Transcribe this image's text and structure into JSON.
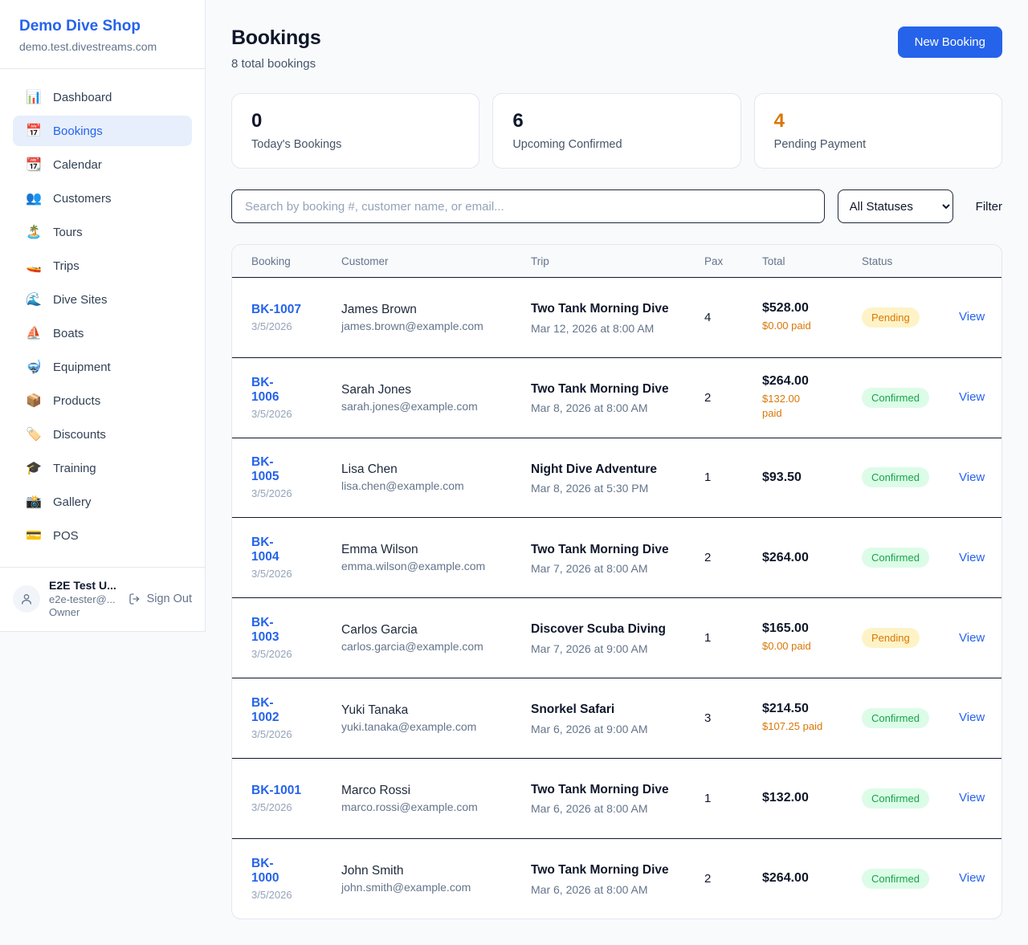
{
  "sidebar": {
    "shop_name": "Demo Dive Shop",
    "shop_domain": "demo.test.divestreams.com",
    "nav": [
      {
        "icon": "📊",
        "label": "Dashboard",
        "active": false
      },
      {
        "icon": "📅",
        "label": "Bookings",
        "active": true
      },
      {
        "icon": "📆",
        "label": "Calendar",
        "active": false
      },
      {
        "icon": "👥",
        "label": "Customers",
        "active": false
      },
      {
        "icon": "🏝️",
        "label": "Tours",
        "active": false
      },
      {
        "icon": "🚤",
        "label": "Trips",
        "active": false
      },
      {
        "icon": "🌊",
        "label": "Dive Sites",
        "active": false
      },
      {
        "icon": "⛵",
        "label": "Boats",
        "active": false
      },
      {
        "icon": "🤿",
        "label": "Equipment",
        "active": false
      },
      {
        "icon": "📦",
        "label": "Products",
        "active": false
      },
      {
        "icon": "🏷️",
        "label": "Discounts",
        "active": false
      },
      {
        "icon": "🎓",
        "label": "Training",
        "active": false
      },
      {
        "icon": "📸",
        "label": "Gallery",
        "active": false
      },
      {
        "icon": "💳",
        "label": "POS",
        "active": false
      }
    ],
    "user": {
      "name": "E2E Test U...",
      "email": "e2e-tester@...",
      "role": "Owner",
      "sign_out_label": "Sign Out"
    }
  },
  "header": {
    "title": "Bookings",
    "subtitle": "8 total bookings",
    "new_booking_label": "New Booking"
  },
  "stats": [
    {
      "value": "0",
      "label": "Today's Bookings",
      "accent": false
    },
    {
      "value": "6",
      "label": "Upcoming Confirmed",
      "accent": false
    },
    {
      "value": "4",
      "label": "Pending Payment",
      "accent": true
    }
  ],
  "controls": {
    "search_placeholder": "Search by booking #, customer name, or email...",
    "status_filter_value": "All Statuses",
    "filter_label": "Filter"
  },
  "table": {
    "columns": [
      "Booking",
      "Customer",
      "Trip",
      "Pax",
      "Total",
      "Status",
      ""
    ],
    "rows": [
      {
        "number_lines": [
          "BK-1007"
        ],
        "number": "BK-1007",
        "date": "3/5/2026",
        "customer_name": "James Brown",
        "customer_email": "james.brown@example.com",
        "trip_name": "Two Tank Morning Dive",
        "trip_datetime": "Mar 12, 2026 at 8:00 AM",
        "pax": "4",
        "total": "$528.00",
        "paid_lines": [
          "$0.00 paid"
        ],
        "status": "Pending",
        "action_label": "View"
      },
      {
        "number_lines": [
          "BK-",
          "1006"
        ],
        "number": "BK-1006",
        "date": "3/5/2026",
        "customer_name": "Sarah Jones",
        "customer_email": "sarah.jones@example.com",
        "trip_name": "Two Tank Morning Dive",
        "trip_datetime": "Mar 8, 2026 at 8:00 AM",
        "pax": "2",
        "total": "$264.00",
        "paid_lines": [
          "$132.00",
          "paid"
        ],
        "status": "Confirmed",
        "action_label": "View"
      },
      {
        "number_lines": [
          "BK-",
          "1005"
        ],
        "number": "BK-1005",
        "date": "3/5/2026",
        "customer_name": "Lisa Chen",
        "customer_email": "lisa.chen@example.com",
        "trip_name": "Night Dive Adventure",
        "trip_datetime": "Mar 8, 2026 at 5:30 PM",
        "pax": "1",
        "total": "$93.50",
        "paid_lines": null,
        "status": "Confirmed",
        "action_label": "View"
      },
      {
        "number_lines": [
          "BK-",
          "1004"
        ],
        "number": "BK-1004",
        "date": "3/5/2026",
        "customer_name": "Emma Wilson",
        "customer_email": "emma.wilson@example.com",
        "trip_name": "Two Tank Morning Dive",
        "trip_datetime": "Mar 7, 2026 at 8:00 AM",
        "pax": "2",
        "total": "$264.00",
        "paid_lines": null,
        "status": "Confirmed",
        "action_label": "View"
      },
      {
        "number_lines": [
          "BK-",
          "1003"
        ],
        "number": "BK-1003",
        "date": "3/5/2026",
        "customer_name": "Carlos Garcia",
        "customer_email": "carlos.garcia@example.com",
        "trip_name": "Discover Scuba Diving",
        "trip_datetime": "Mar 7, 2026 at 9:00 AM",
        "pax": "1",
        "total": "$165.00",
        "paid_lines": [
          "$0.00 paid"
        ],
        "status": "Pending",
        "action_label": "View"
      },
      {
        "number_lines": [
          "BK-",
          "1002"
        ],
        "number": "BK-1002",
        "date": "3/5/2026",
        "customer_name": "Yuki Tanaka",
        "customer_email": "yuki.tanaka@example.com",
        "trip_name": "Snorkel Safari",
        "trip_datetime": "Mar 6, 2026 at 9:00 AM",
        "pax": "3",
        "total": "$214.50",
        "paid_lines": [
          "$107.25 paid"
        ],
        "status": "Confirmed",
        "action_label": "View"
      },
      {
        "number_lines": [
          "BK-1001"
        ],
        "number": "BK-1001",
        "date": "3/5/2026",
        "customer_name": "Marco Rossi",
        "customer_email": "marco.rossi@example.com",
        "trip_name": "Two Tank Morning Dive",
        "trip_datetime": "Mar 6, 2026 at 8:00 AM",
        "pax": "1",
        "total": "$132.00",
        "paid_lines": null,
        "status": "Confirmed",
        "action_label": "View"
      },
      {
        "number_lines": [
          "BK-",
          "1000"
        ],
        "number": "BK-1000",
        "date": "3/5/2026",
        "customer_name": "John Smith",
        "customer_email": "john.smith@example.com",
        "trip_name": "Two Tank Morning Dive",
        "trip_datetime": "Mar 6, 2026 at 8:00 AM",
        "pax": "2",
        "total": "$264.00",
        "paid_lines": null,
        "status": "Confirmed",
        "action_label": "View"
      }
    ]
  },
  "colors": {
    "primary_blue": "#2563eb",
    "active_nav_bg": "#e7effc",
    "pending_text": "#d97706",
    "pending_bg": "#fef3c7",
    "confirmed_text": "#16a34a",
    "confirmed_bg": "#dcfce7",
    "page_bg": "#f8fafc",
    "row_border": "#0f172a"
  }
}
